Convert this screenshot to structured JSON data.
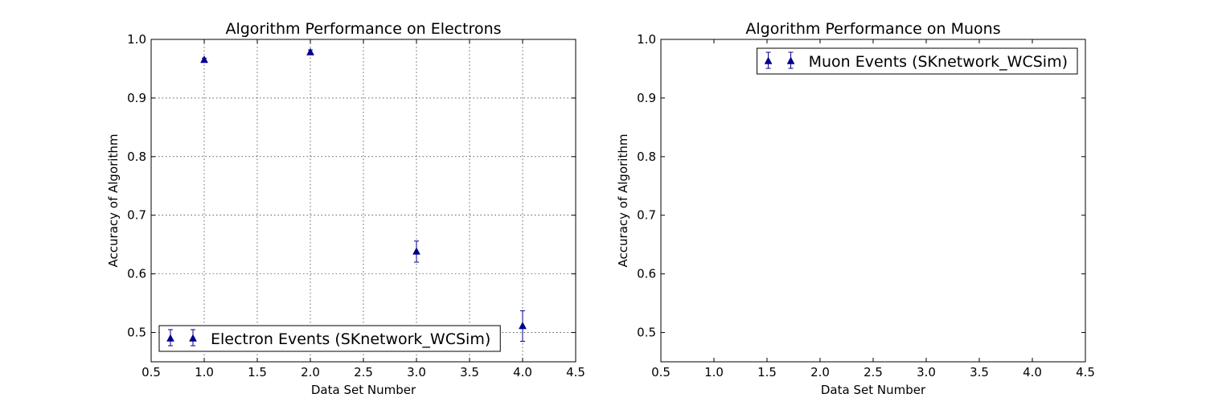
{
  "chart_data": [
    {
      "type": "scatter",
      "title": "Algorithm Performance on Electrons",
      "xlabel": "Data Set Number",
      "ylabel": "Accuracy of Algorithm",
      "xlim": [
        0.5,
        4.5
      ],
      "ylim": [
        0.45,
        1.0
      ],
      "xticks": [
        "0.5",
        "1.0",
        "1.5",
        "2.0",
        "2.5",
        "3.0",
        "3.5",
        "4.0",
        "4.5"
      ],
      "yticks": [
        "0.5",
        "0.6",
        "0.7",
        "0.8",
        "0.9",
        "1.0"
      ],
      "grid": true,
      "legend_position": "lower-left",
      "series": [
        {
          "name": "Electron Events (SKnetwork_WCSim)",
          "color": "#00008b",
          "marker": "triangle-up",
          "x": [
            1.0,
            2.0,
            3.0,
            4.0
          ],
          "y": [
            0.965,
            0.978,
            0.638,
            0.511
          ],
          "yerr": [
            0.003,
            0.004,
            0.018,
            0.026
          ]
        }
      ]
    },
    {
      "type": "scatter",
      "title": "Algorithm Performance on Muons",
      "xlabel": "Data Set Number",
      "ylabel": "Accuracy of Algorithm",
      "xlim": [
        0.5,
        4.5
      ],
      "ylim": [
        0.45,
        1.0
      ],
      "xticks": [
        "0.5",
        "1.0",
        "1.5",
        "2.0",
        "2.5",
        "3.0",
        "3.5",
        "4.0",
        "4.5"
      ],
      "yticks": [
        "0.5",
        "0.6",
        "0.7",
        "0.8",
        "0.9",
        "1.0"
      ],
      "grid": false,
      "legend_position": "upper-right",
      "series": [
        {
          "name": "Muon Events (SKnetwork_WCSim)",
          "color": "#00008b",
          "marker": "triangle-up",
          "x": [],
          "y": [],
          "yerr": []
        }
      ]
    }
  ]
}
